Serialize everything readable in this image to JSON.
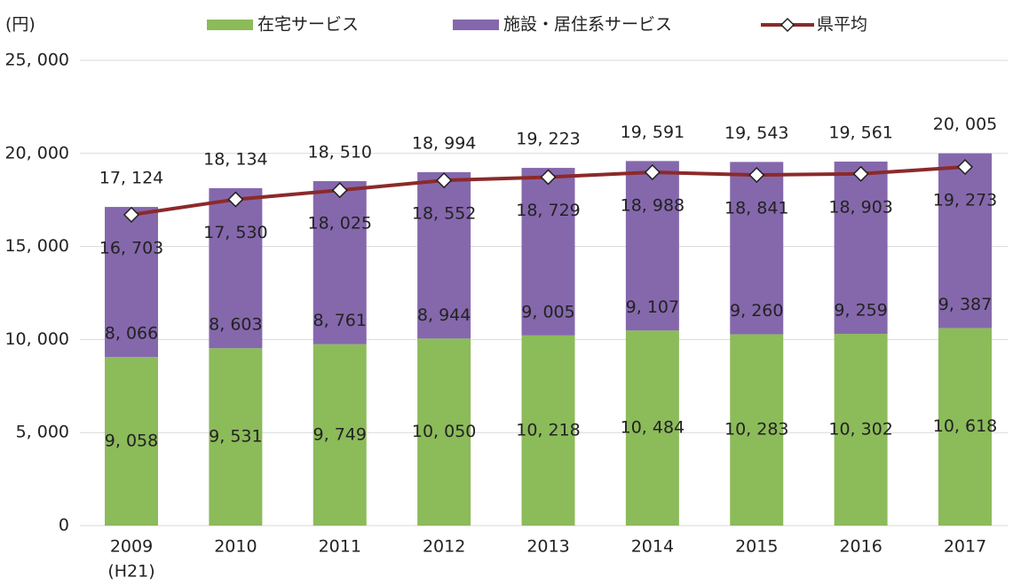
{
  "chart_data": {
    "type": "bar",
    "stacked": true,
    "y_label": "(円)",
    "categories": [
      "2009",
      "2010",
      "2011",
      "2012",
      "2013",
      "2014",
      "2015",
      "2016",
      "2017"
    ],
    "category_sublabels": [
      "(H21)",
      null,
      null,
      null,
      null,
      null,
      null,
      null,
      null
    ],
    "series": [
      {
        "name": "在宅サービス",
        "color": "#8cbb5a",
        "values": [
          9058,
          9531,
          9749,
          10050,
          10218,
          10484,
          10283,
          10302,
          10618
        ],
        "value_labels": [
          "9, 058",
          "9, 531",
          "9, 749",
          "10, 050",
          "10, 218",
          "10, 484",
          "10, 283",
          "10, 302",
          "10, 618"
        ]
      },
      {
        "name": "施設・居住系サービス",
        "color": "#8568ac",
        "values": [
          8066,
          8603,
          8761,
          8944,
          9005,
          9107,
          9260,
          9259,
          9387
        ],
        "value_labels": [
          "8, 066",
          "8, 603",
          "8, 761",
          "8, 944",
          "9, 005",
          "9, 107",
          "9, 260",
          "9, 259",
          "9, 387"
        ]
      },
      {
        "name": "県平均",
        "type": "line",
        "color": "#8b2a2a",
        "values": [
          16703,
          17530,
          18025,
          18552,
          18729,
          18988,
          18841,
          18903,
          19273
        ],
        "value_labels": [
          "16, 703",
          "17, 530",
          "18, 025",
          "18, 552",
          "18, 729",
          "18, 988",
          "18, 841",
          "18, 903",
          "19, 273"
        ]
      }
    ],
    "totals": [
      17124,
      18134,
      18510,
      18994,
      19223,
      19591,
      19543,
      19561,
      20005
    ],
    "total_labels": [
      "17, 124",
      "18, 134",
      "18, 510",
      "18, 994",
      "19, 223",
      "19, 591",
      "19, 543",
      "19, 561",
      "20, 005"
    ],
    "ylim": [
      0,
      25000
    ],
    "yticks": [
      {
        "value": 0,
        "label": "0"
      },
      {
        "value": 5000,
        "label": "5, 000"
      },
      {
        "value": 10000,
        "label": "10, 000"
      },
      {
        "value": 15000,
        "label": "15, 000"
      },
      {
        "value": 20000,
        "label": "20, 000"
      },
      {
        "value": 25000,
        "label": "25, 000"
      }
    ],
    "grid": true,
    "legend": "top"
  }
}
